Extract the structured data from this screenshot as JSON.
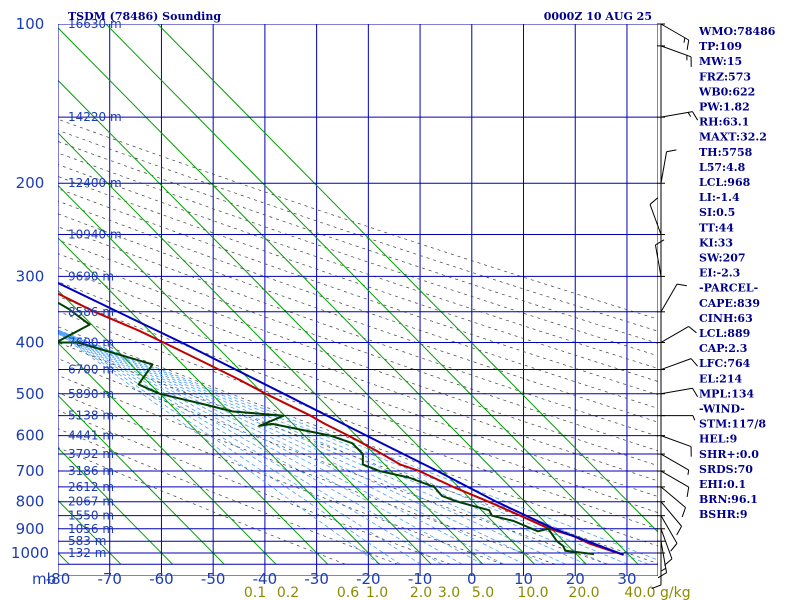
{
  "chart_data": {
    "type": "line",
    "title": "TSDM (78486) Sounding",
    "datetime": "0000Z 10 AUG 25",
    "pressure_unit": "mb",
    "pressure_levels": [
      100,
      200,
      300,
      400,
      500,
      600,
      700,
      800,
      900,
      1000
    ],
    "temperature_ticks": [
      "-80",
      "-70",
      "-60",
      "-50",
      "-40",
      "-30",
      "-20",
      "-10",
      "0",
      "10",
      "20",
      "30"
    ],
    "xlim": [
      -80,
      36
    ],
    "ylim": [
      100,
      1050
    ],
    "heights": [
      {
        "p": 100,
        "label": "16630 m"
      },
      {
        "p": 150,
        "label": "14220 m"
      },
      {
        "p": 200,
        "label": "12400 m"
      },
      {
        "p": 250,
        "label": "10940 m"
      },
      {
        "p": 300,
        "label": "9690 m"
      },
      {
        "p": 350,
        "label": "8586 m"
      },
      {
        "p": 400,
        "label": "7600 m"
      },
      {
        "p": 450,
        "label": "6700 m"
      },
      {
        "p": 500,
        "label": "5890 m"
      },
      {
        "p": 550,
        "label": "5138 m"
      },
      {
        "p": 600,
        "label": "4441 m"
      },
      {
        "p": 650,
        "label": "3792 m"
      },
      {
        "p": 700,
        "label": "3186 m"
      },
      {
        "p": 750,
        "label": "2612 m"
      },
      {
        "p": 800,
        "label": "2067 m"
      },
      {
        "p": 850,
        "label": "1550 m"
      },
      {
        "p": 900,
        "label": "1056 m"
      },
      {
        "p": 950,
        "label": "583 m"
      },
      {
        "p": 1000,
        "label": "132 m"
      }
    ],
    "mixing_ratio_labels": [
      {
        "value": 0.1,
        "label": "0.1"
      },
      {
        "value": 0.2,
        "label": "0.2"
      },
      {
        "value": 0.6,
        "label": "0.6"
      },
      {
        "value": 1.0,
        "label": "1.0"
      },
      {
        "value": 2.0,
        "label": "2.0"
      },
      {
        "value": 3.0,
        "label": "3.0"
      },
      {
        "value": 5.0,
        "label": "5.0"
      },
      {
        "value": 10.0,
        "label": "10.0"
      },
      {
        "value": 20.0,
        "label": "20.0"
      },
      {
        "value": 40.0,
        "label": "40.0"
      }
    ],
    "mixing_ratio_unit": "g/kg",
    "series": [
      {
        "role": "temperature",
        "color": "#c00000",
        "points": [
          [
            100,
            -77.5
          ],
          [
            110,
            -77
          ],
          [
            130,
            -67
          ],
          [
            150,
            -62
          ],
          [
            170,
            -57
          ],
          [
            200,
            -53
          ],
          [
            230,
            -48
          ],
          [
            250,
            -44
          ],
          [
            280,
            -38
          ],
          [
            300,
            -34
          ],
          [
            350,
            -27
          ],
          [
            380,
            -22
          ],
          [
            400,
            -19.5
          ],
          [
            440,
            -15
          ],
          [
            470,
            -12
          ],
          [
            500,
            -9.5
          ],
          [
            550,
            -5
          ],
          [
            570,
            -3.8
          ],
          [
            600,
            -1.5
          ],
          [
            640,
            1
          ],
          [
            680,
            3
          ],
          [
            700,
            5.5
          ],
          [
            750,
            9
          ],
          [
            800,
            13
          ],
          [
            850,
            16.5
          ],
          [
            900,
            19.6
          ],
          [
            930,
            23
          ],
          [
            960,
            24.5
          ],
          [
            990,
            27.3
          ],
          [
            1008,
            29
          ]
        ]
      },
      {
        "role": "dewpoint",
        "color": "#004000",
        "points": [
          [
            150,
            -80
          ],
          [
            170,
            -76
          ],
          [
            180,
            -73.5
          ],
          [
            200,
            -69
          ],
          [
            220,
            -63
          ],
          [
            215,
            -60.6
          ],
          [
            230,
            -60.3
          ],
          [
            250,
            -56.6
          ],
          [
            270,
            -50.6
          ],
          [
            280,
            -43.5
          ],
          [
            350,
            -36.5
          ],
          [
            335,
            -32.5
          ],
          [
            345,
            -31.5
          ],
          [
            370,
            -30.4
          ],
          [
            400,
            -40.3
          ],
          [
            400,
            -36.1
          ],
          [
            440,
            -25.8
          ],
          [
            480,
            -32.3
          ],
          [
            500,
            -30
          ],
          [
            525,
            -23
          ],
          [
            540,
            -19.4
          ],
          [
            550,
            -10.2
          ],
          [
            575,
            -16.9
          ],
          [
            570,
            -14
          ],
          [
            600,
            -5
          ],
          [
            620,
            -2.2
          ],
          [
            650,
            -2.2
          ],
          [
            680,
            -4.2
          ],
          [
            700,
            -2.2
          ],
          [
            720,
            2.2
          ],
          [
            750,
            5.3
          ],
          [
            780,
            5.1
          ],
          [
            800,
            7
          ],
          [
            830,
            11.5
          ],
          [
            850,
            11
          ],
          [
            870,
            14.2
          ],
          [
            910,
            16.9
          ],
          [
            900,
            19.4
          ],
          [
            950,
            18.7
          ],
          [
            970,
            19
          ],
          [
            990,
            18.5
          ],
          [
            1005,
            23.4
          ]
        ]
      },
      {
        "role": "parcel",
        "color": "#0000c0",
        "points": [
          [
            120,
            -80
          ],
          [
            150,
            -69.5
          ],
          [
            200,
            -53
          ],
          [
            250,
            -40
          ],
          [
            300,
            -30
          ],
          [
            400,
            -16
          ],
          [
            500,
            -6
          ],
          [
            600,
            2
          ],
          [
            700,
            9
          ],
          [
            800,
            14.5
          ],
          [
            900,
            20.5
          ],
          [
            1008,
            29
          ]
        ]
      }
    ],
    "indices": [
      "WMO:78486",
      "TP:109",
      "MW:15",
      "FRZ:573",
      "WB0:622",
      "PW:1.82",
      "RH:63.1",
      "MAXT:32.2",
      "TH:5758",
      "L57:4.8",
      "LCL:968",
      "LI:-1.4",
      "SI:0.5",
      "TT:44",
      "KI:33",
      "SW:207",
      "EI:-2.3",
      "-PARCEL-",
      "CAPE:839",
      "CINH:63",
      "LCL:889",
      "CAP:2.3",
      "LFC:764",
      "EL:214",
      "MPL:134",
      "-WIND-",
      "STM:117/8",
      "HEL:9",
      "SHR+:0.0",
      "SRDS:70",
      "EHI:0.1",
      "BRN:96.1",
      "BSHR:9"
    ],
    "wind_barbs": [
      {
        "p": 100,
        "dir": 120,
        "spd": 15
      },
      {
        "p": 110,
        "dir": 110,
        "spd": 15
      },
      {
        "p": 150,
        "dir": 80,
        "spd": 15
      },
      {
        "p": 200,
        "dir": 10,
        "spd": 10
      },
      {
        "p": 250,
        "dir": 340,
        "spd": 10
      },
      {
        "p": 300,
        "dir": 350,
        "spd": 10
      },
      {
        "p": 350,
        "dir": 30,
        "spd": 10
      },
      {
        "p": 400,
        "dir": 60,
        "spd": 10
      },
      {
        "p": 450,
        "dir": 70,
        "spd": 10
      },
      {
        "p": 500,
        "dir": 80,
        "spd": 10
      },
      {
        "p": 550,
        "dir": 90,
        "spd": 5
      },
      {
        "p": 600,
        "dir": 110,
        "spd": 10
      },
      {
        "p": 650,
        "dir": 120,
        "spd": 5
      },
      {
        "p": 700,
        "dir": 120,
        "spd": 10
      },
      {
        "p": 750,
        "dir": 130,
        "spd": 10
      },
      {
        "p": 800,
        "dir": 140,
        "spd": 10
      },
      {
        "p": 850,
        "dir": 150,
        "spd": 10
      },
      {
        "p": 900,
        "dir": 160,
        "spd": 10
      },
      {
        "p": 950,
        "dir": 170,
        "spd": 15
      },
      {
        "p": 1000,
        "dir": 180,
        "spd": 10
      }
    ],
    "colors": {
      "isobar": "#0000b4",
      "isotherm": "#00a000",
      "dry_adiabat": "#404040",
      "moist_adiabat": "#4aa0ff",
      "label_blue": "#1c3cb4",
      "mixing_label": "#8b8b00",
      "title": "#00008b"
    }
  }
}
